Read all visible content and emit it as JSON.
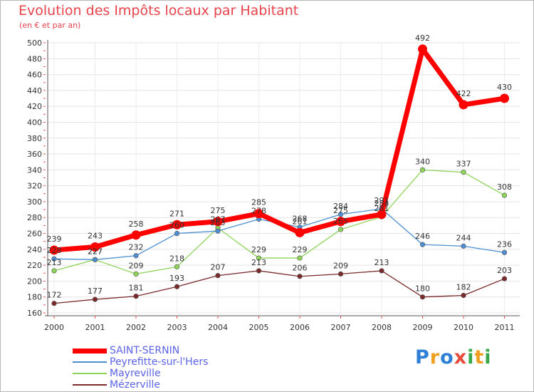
{
  "title": "Evolution des Impôts locaux par Habitant",
  "subtitle": "(en € et par an)",
  "logo_letters": [
    {
      "ch": "P",
      "color": "#2f7fd6"
    },
    {
      "ch": "r",
      "color": "#f0a020"
    },
    {
      "ch": "o",
      "color": "#2f7fd6"
    },
    {
      "ch": "x",
      "color": "#e84a3c"
    },
    {
      "ch": "i",
      "color": "#3aa84a"
    },
    {
      "ch": "t",
      "color": "#f0a020"
    },
    {
      "ch": "i",
      "color": "#3aa84a"
    }
  ],
  "chart_data": {
    "type": "line",
    "title": "Evolution des Impôts locaux par Habitant",
    "subtitle": "(en € et par an)",
    "xlabel": "",
    "ylabel": "",
    "ylim": [
      160,
      500
    ],
    "yticks": [
      160,
      180,
      200,
      220,
      240,
      260,
      280,
      300,
      320,
      340,
      360,
      380,
      400,
      420,
      440,
      460,
      480,
      500
    ],
    "categories": [
      "2000",
      "2001",
      "2002",
      "2003",
      "2004",
      "2005",
      "2006",
      "2007",
      "2008",
      "2009",
      "2010",
      "2011"
    ],
    "grid": true,
    "legend_position": "bottom-left",
    "series": [
      {
        "name": "Mézerville",
        "color": "#7a2a2a",
        "emphasis": false,
        "values": [
          172,
          177,
          181,
          193,
          207,
          213,
          206,
          209,
          213,
          180,
          182,
          203
        ],
        "labels": [
          "172",
          "177",
          "181",
          "193",
          "207",
          "213",
          "206",
          "209",
          "213",
          "180",
          "182",
          "203"
        ]
      },
      {
        "name": "Mayreville",
        "color": "#8ed45a",
        "emphasis": false,
        "values": [
          213,
          227,
          209,
          218,
          267,
          229,
          229,
          265,
          281,
          340,
          337,
          308
        ],
        "labels": [
          "213",
          "227",
          "209",
          "218",
          "267",
          "229",
          "229",
          "265",
          "281",
          "340",
          "337",
          "308"
        ]
      },
      {
        "name": "Peyrefitte-sur-l'Hers",
        "color": "#4d8fd0",
        "emphasis": false,
        "values": [
          228,
          227,
          232,
          260,
          263,
          278,
          268,
          284,
          291,
          246,
          244,
          236
        ],
        "labels": [
          "228",
          "227",
          "232",
          "260",
          "263",
          "278",
          "268",
          "284",
          "291",
          "246",
          "244",
          "236"
        ]
      },
      {
        "name": "SAINT-SERNIN",
        "color": "#ff0000",
        "emphasis": true,
        "values": [
          239,
          243,
          258,
          271,
          275,
          285,
          261,
          275,
          284,
          492,
          422,
          430
        ],
        "labels": [
          "239",
          "243",
          "258",
          "271",
          "275",
          "285",
          "261",
          "275",
          "284",
          "492",
          "422",
          "430"
        ]
      }
    ],
    "legend": [
      {
        "name": "SAINT-SERNIN",
        "color": "#ff0000",
        "emphasis": true
      },
      {
        "name": "Peyrefitte-sur-l'Hers",
        "color": "#4d8fd0",
        "emphasis": false
      },
      {
        "name": "Mayreville",
        "color": "#8ed45a",
        "emphasis": false
      },
      {
        "name": "Mézerville",
        "color": "#7a2a2a",
        "emphasis": false
      }
    ]
  }
}
